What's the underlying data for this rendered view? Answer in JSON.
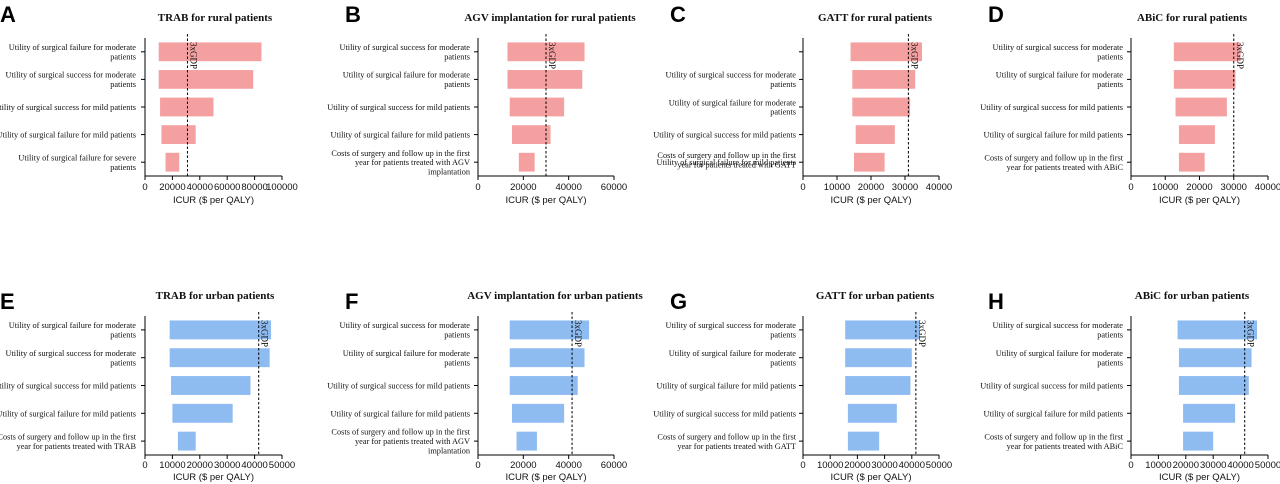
{
  "colors": {
    "rural": "#f4a0a0",
    "urban": "#8fbcf0",
    "ref_line": "#000000",
    "axis": "#000000"
  },
  "chart_data": [
    {
      "type": "bar",
      "orientation": "horizontal",
      "panel": "A",
      "title": "TRAB for rural patients",
      "xlabel": "ICUR ($ per QALY)",
      "xlim": [
        0,
        100000
      ],
      "xticks": [
        0,
        20000,
        40000,
        60000,
        80000,
        100000
      ],
      "ref_line": {
        "label": "3xGDP",
        "value": 31000
      },
      "color": "rural",
      "bars": [
        {
          "label": "Utility of surgical failure for moderate patients",
          "low": 10000,
          "high": 85000
        },
        {
          "label": "Utility of surgical success for moderate patients",
          "low": 10000,
          "high": 79000
        },
        {
          "label": "Utility of surgical success for mild patients",
          "low": 11000,
          "high": 50000
        },
        {
          "label": "Utility of surgical failure for mild patients",
          "low": 12000,
          "high": 37000
        },
        {
          "label": "Utility of surgical failure for severe patients",
          "low": 15000,
          "high": 25000
        }
      ]
    },
    {
      "type": "bar",
      "orientation": "horizontal",
      "panel": "B",
      "title": "AGV implantation for rural patients",
      "xlabel": "ICUR ($ per QALY)",
      "xlim": [
        0,
        60000
      ],
      "xticks": [
        0,
        20000,
        40000,
        60000
      ],
      "ref_line": {
        "label": "3xGDP",
        "value": 30000
      },
      "color": "rural",
      "bars": [
        {
          "label": "Utility of surgical success for moderate patients",
          "low": 13000,
          "high": 47000
        },
        {
          "label": "Utility of surgical failure for moderate patients",
          "low": 13000,
          "high": 46000
        },
        {
          "label": "Utility of surgical success for mild patients",
          "low": 14000,
          "high": 38000
        },
        {
          "label": "Utility of surgical failure for mild patients",
          "low": 15000,
          "high": 32000
        },
        {
          "label": "Costs of surgery and follow up in the first year for patients treated with AGV implantation",
          "low": 18000,
          "high": 25000
        }
      ]
    },
    {
      "type": "bar",
      "orientation": "horizontal",
      "panel": "C",
      "title": "GATT for rural patients",
      "xlabel": "ICUR ($ per QALY)",
      "xlim": [
        0,
        40000
      ],
      "xticks": [
        0,
        10000,
        20000,
        30000,
        40000
      ],
      "ref_line": {
        "label": "3xGDP",
        "value": 31000
      },
      "color": "rural",
      "bars": [
        {
          "label": "",
          "low": 14000,
          "high": 35000
        },
        {
          "label": "Utility of surgical success for moderate patients",
          "low": 14500,
          "high": 33000
        },
        {
          "label": "Utility of surgical failure for moderate patients",
          "low": 14500,
          "high": 31500
        },
        {
          "label": "Utility of surgical success for mild patients",
          "low": 15500,
          "high": 27000
        },
        {
          "label": "Utility of surgical failure for mild patients",
          "low": 15000,
          "high": 24000
        }
      ],
      "extra_labels": [
        "Costs of surgery and follow up in the first year for patients treated with GATT"
      ]
    },
    {
      "type": "bar",
      "orientation": "horizontal",
      "panel": "D",
      "title": "ABiC for rural patients",
      "xlabel": "ICUR ($ per QALY)",
      "xlim": [
        0,
        40000
      ],
      "xticks": [
        0,
        10000,
        20000,
        30000,
        40000
      ],
      "ref_line": {
        "label": "3xGDP",
        "value": 30000
      },
      "color": "rural",
      "bars": [
        {
          "label": "Utility of surgical success for moderate patients",
          "low": 12500,
          "high": 32000
        },
        {
          "label": "Utility of surgical failure for moderate patients",
          "low": 12500,
          "high": 30500
        },
        {
          "label": "Utility of surgical success for mild patients",
          "low": 13000,
          "high": 28000
        },
        {
          "label": "Utility of surgical failure for mild patients",
          "low": 14000,
          "high": 24500
        },
        {
          "label": "Costs of surgery and follow up in the first year for patients treated with ABiC",
          "low": 14000,
          "high": 21500
        }
      ]
    },
    {
      "type": "bar",
      "orientation": "horizontal",
      "panel": "E",
      "title": "TRAB for urban patients",
      "xlabel": "ICUR ($ per QALY)",
      "xlim": [
        0,
        50000
      ],
      "xticks": [
        0,
        10000,
        20000,
        30000,
        40000,
        50000
      ],
      "ref_line": {
        "label": "3xGDP",
        "value": 41500
      },
      "color": "urban",
      "bars": [
        {
          "label": "Utility of surgical failure for moderate patients",
          "low": 9000,
          "high": 46000
        },
        {
          "label": "Utility of surgical success for moderate patients",
          "low": 9000,
          "high": 45500
        },
        {
          "label": "Utility of surgical success for mild patients",
          "low": 9500,
          "high": 38500
        },
        {
          "label": "Utility of surgical failure for mild patients",
          "low": 10000,
          "high": 32000
        },
        {
          "label": "Costs of surgery and follow up in the first year for patients treated with TRAB",
          "low": 12000,
          "high": 18500
        }
      ]
    },
    {
      "type": "bar",
      "orientation": "horizontal",
      "panel": "F",
      "title": "AGV implantation for urban patients",
      "xlabel": "ICUR ($ per QALY)",
      "xlim": [
        0,
        60000
      ],
      "xticks": [
        0,
        20000,
        40000,
        60000
      ],
      "ref_line": {
        "label": "3xGDP",
        "value": 41500
      },
      "color": "urban",
      "bars": [
        {
          "label": "Utility of surgical success for moderate patients",
          "low": 14000,
          "high": 49000
        },
        {
          "label": "Utility of surgical failure for moderate patients",
          "low": 14000,
          "high": 47000
        },
        {
          "label": "Utility of surgical success for mild patients",
          "low": 14000,
          "high": 44000
        },
        {
          "label": "Utility of surgical failure for mild patients",
          "low": 15000,
          "high": 38000
        },
        {
          "label": "Costs of surgery and follow up in the first year for patients treated with AGV implantation",
          "low": 17000,
          "high": 26000
        }
      ]
    },
    {
      "type": "bar",
      "orientation": "horizontal",
      "panel": "G",
      "title": "GATT for urban patients",
      "xlabel": "ICUR ($ per QALY)",
      "xlim": [
        0,
        50000
      ],
      "xticks": [
        0,
        10000,
        20000,
        30000,
        40000,
        50000
      ],
      "ref_line": {
        "label": "3xGDP",
        "value": 41500
      },
      "color": "urban",
      "bars": [
        {
          "label": "Utility of surgical success for moderate patients",
          "low": 15500,
          "high": 43000
        },
        {
          "label": "Utility of surgical failure for moderate patients",
          "low": 15500,
          "high": 40000
        },
        {
          "label": "Utility of surgical failure for mild patients",
          "low": 15500,
          "high": 39500
        },
        {
          "label": "Utility of surgical success for mild patients",
          "low": 16500,
          "high": 34500
        },
        {
          "label": "Costs of surgery and follow up in the first year for patients treated with GATT",
          "low": 16500,
          "high": 28000
        }
      ]
    },
    {
      "type": "bar",
      "orientation": "horizontal",
      "panel": "H",
      "title": "ABiC for urban patients",
      "xlabel": "ICUR ($ per QALY)",
      "xlim": [
        0,
        50000
      ],
      "xticks": [
        0,
        10000,
        20000,
        30000,
        40000,
        50000
      ],
      "ref_line": {
        "label": "3xGDP",
        "value": 41500
      },
      "color": "urban",
      "bars": [
        {
          "label": "Utility of surgical success for moderate patients",
          "low": 17000,
          "high": 46000
        },
        {
          "label": "Utility of surgical failure for moderate patients",
          "low": 17500,
          "high": 44000
        },
        {
          "label": "Utility of surgical success for mild patients",
          "low": 17500,
          "high": 43000
        },
        {
          "label": "Utility of surgical failure for mild patients",
          "low": 19000,
          "high": 38000
        },
        {
          "label": "Costs of surgery and follow up in the first year for patients treated with ABiC",
          "low": 19000,
          "high": 30000
        }
      ]
    }
  ]
}
